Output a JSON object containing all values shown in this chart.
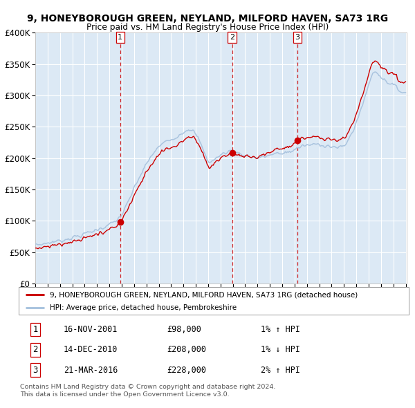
{
  "title1": "9, HONEYBOROUGH GREEN, NEYLAND, MILFORD HAVEN, SA73 1RG",
  "title2": "Price paid vs. HM Land Registry's House Price Index (HPI)",
  "legend1": "9, HONEYBOROUGH GREEN, NEYLAND, MILFORD HAVEN, SA73 1RG (detached house)",
  "legend2": "HPI: Average price, detached house, Pembrokeshire",
  "sale1_date": "16-NOV-2001",
  "sale1_price": 98000,
  "sale1_hpi": "1% ↑ HPI",
  "sale2_date": "14-DEC-2010",
  "sale2_price": 208000,
  "sale2_hpi": "1% ↓ HPI",
  "sale3_date": "21-MAR-2016",
  "sale3_price": 228000,
  "sale3_hpi": "2% ↑ HPI",
  "sale1_x": 2001.88,
  "sale2_x": 2010.95,
  "sale3_x": 2016.22,
  "hpi_color": "#aac4df",
  "price_color": "#cc0000",
  "dot_color": "#cc0000",
  "vline_color": "#cc0000",
  "bg_color": "#dce9f5",
  "grid_color": "#ffffff",
  "footer": "Contains HM Land Registry data © Crown copyright and database right 2024.\nThis data is licensed under the Open Government Licence v3.0.",
  "ylim_max": 400000,
  "ylim_min": 0
}
